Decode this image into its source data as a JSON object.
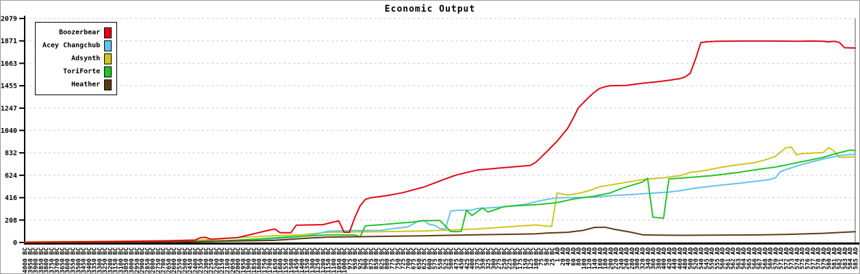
{
  "window": {
    "title": "Economic Output"
  },
  "chart_data": {
    "type": "line",
    "title": "Economic Output",
    "ylim": [
      0,
      2079
    ],
    "yticks": [
      0,
      208,
      416,
      624,
      832,
      1040,
      1247,
      1455,
      1663,
      1871,
      2079
    ],
    "grid": "horizontal-dashed",
    "grid_color": "#c9c9c9",
    "axis_color": "#000000",
    "legend_position": "top-left",
    "x_labels": [
      "4000 BC",
      "3950 BC",
      "3900 BC",
      "3850 BC",
      "3800 BC",
      "3750 BC",
      "3700 BC",
      "3650 BC",
      "3600 BC",
      "3550 BC",
      "3500 BC",
      "3450 BC",
      "3400 BC",
      "3350 BC",
      "3300 BC",
      "3250 BC",
      "3200 BC",
      "3150 BC",
      "3100 BC",
      "3050 BC",
      "3000 BC",
      "2950 BC",
      "2900 BC",
      "2850 BC",
      "2800 BC",
      "2750 BC",
      "2700 BC",
      "2650 BC",
      "2600 BC",
      "2550 BC",
      "2500 BC",
      "2450 BC",
      "2400 BC",
      "2350 BC",
      "2300 BC",
      "2250 BC",
      "2200 BC",
      "2150 BC",
      "2100 BC",
      "2050 BC",
      "2000 BC",
      "1950 BC",
      "1900 BC",
      "1850 BC",
      "1800 BC",
      "1750 BC",
      "1700 BC",
      "1650 BC",
      "1600 BC",
      "1550 BC",
      "1500 BC",
      "1450 BC",
      "1400 BC",
      "1350 BC",
      "1300 BC",
      "1250 BC",
      "1200 BC",
      "1150 BC",
      "1100 BC",
      "1050 BC",
      "1000 BC",
      "975 BC",
      "950 BC",
      "925 BC",
      "900 BC",
      "875 BC",
      "850 BC",
      "825 BC",
      "800 BC",
      "775 BC",
      "750 BC",
      "725 BC",
      "700 BC",
      "675 BC",
      "650 BC",
      "625 BC",
      "600 BC",
      "575 BC",
      "550 BC",
      "525 BC",
      "500 BC",
      "475 BC",
      "450 BC",
      "425 BC",
      "400 BC",
      "375 BC",
      "350 BC",
      "325 BC",
      "300 BC",
      "275 BC",
      "250 BC",
      "225 BC",
      "200 BC",
      "175 BC",
      "150 BC",
      "125 BC",
      "100 BC",
      "75 BC",
      "50 BC",
      "25 BC",
      "1 AD",
      "20 AD",
      "40 AD",
      "60 AD",
      "80 AD",
      "100 AD",
      "120 AD",
      "140 AD",
      "160 AD",
      "180 AD",
      "200 AD",
      "220 AD",
      "240 AD",
      "260 AD",
      "280 AD",
      "300 AD",
      "320 AD",
      "340 AD",
      "360 AD",
      "380 AD",
      "400 AD",
      "420 AD",
      "440 AD",
      "460 AD",
      "480 AD",
      "500 AD",
      "520 AD",
      "540 AD",
      "545 AD",
      "550 AD",
      "555 AD",
      "560 AD",
      "561 AD",
      "562 AD",
      "563 AD",
      "564 AD",
      "565 AD",
      "566 AD",
      "567 AD",
      "568 AD",
      "569 AD",
      "570 AD",
      "571 AD",
      "572 AD",
      "573 AD",
      "574 AD",
      "575 AD",
      "576 AD",
      "577 AD",
      "578 AD",
      "579 AD",
      "580 AD",
      "581 AD",
      "582 AD",
      "583 AD",
      "584 AD",
      "585 AD"
    ],
    "series": [
      {
        "name": "Boozerbear",
        "color": "#e30613",
        "points": [
          [
            0,
            2
          ],
          [
            18,
            10
          ],
          [
            26,
            15
          ],
          [
            32,
            22
          ],
          [
            33,
            45
          ],
          [
            34,
            48
          ],
          [
            35,
            30
          ],
          [
            40,
            45
          ],
          [
            46,
            115
          ],
          [
            47,
            125
          ],
          [
            48,
            90
          ],
          [
            50,
            90
          ],
          [
            51,
            160
          ],
          [
            56,
            165
          ],
          [
            58,
            190
          ],
          [
            59,
            200
          ],
          [
            60,
            95
          ],
          [
            61,
            95
          ],
          [
            62,
            230
          ],
          [
            63,
            340
          ],
          [
            64,
            400
          ],
          [
            65,
            415
          ],
          [
            68,
            435
          ],
          [
            71,
            462
          ],
          [
            75,
            515
          ],
          [
            79,
            590
          ],
          [
            81,
            625
          ],
          [
            83,
            650
          ],
          [
            85,
            672
          ],
          [
            90,
            695
          ],
          [
            95,
            715
          ],
          [
            96,
            745
          ],
          [
            97,
            790
          ],
          [
            98,
            840
          ],
          [
            99,
            890
          ],
          [
            100,
            940
          ],
          [
            101,
            1000
          ],
          [
            102,
            1060
          ],
          [
            103,
            1150
          ],
          [
            104,
            1250
          ],
          [
            105,
            1300
          ],
          [
            106,
            1350
          ],
          [
            107,
            1395
          ],
          [
            108,
            1430
          ],
          [
            109,
            1445
          ],
          [
            110,
            1455
          ],
          [
            113,
            1458
          ],
          [
            115,
            1472
          ],
          [
            117,
            1483
          ],
          [
            119,
            1492
          ],
          [
            121,
            1505
          ],
          [
            123,
            1520
          ],
          [
            124,
            1535
          ],
          [
            125,
            1570
          ],
          [
            126,
            1700
          ],
          [
            127,
            1855
          ],
          [
            128,
            1862
          ],
          [
            130,
            1868
          ],
          [
            135,
            1870
          ],
          [
            140,
            1870
          ],
          [
            145,
            1868
          ],
          [
            148,
            1870
          ],
          [
            150,
            1868
          ],
          [
            151,
            1862
          ],
          [
            152,
            1868
          ],
          [
            153,
            1858
          ],
          [
            154,
            1808
          ],
          [
            156,
            1805
          ]
        ]
      },
      {
        "name": "Acey Changchub",
        "color": "#63c2f0",
        "points": [
          [
            0,
            2
          ],
          [
            20,
            5
          ],
          [
            34,
            10
          ],
          [
            40,
            18
          ],
          [
            47,
            35
          ],
          [
            51,
            50
          ],
          [
            53,
            62
          ],
          [
            55,
            80
          ],
          [
            57,
            105
          ],
          [
            60,
            110
          ],
          [
            67,
            113
          ],
          [
            69,
            128
          ],
          [
            72,
            145
          ],
          [
            74,
            200
          ],
          [
            75,
            205
          ],
          [
            76,
            168
          ],
          [
            77,
            160
          ],
          [
            78,
            130
          ],
          [
            79,
            122
          ],
          [
            80,
            290
          ],
          [
            81,
            298
          ],
          [
            84,
            300
          ],
          [
            85,
            315
          ],
          [
            90,
            330
          ],
          [
            94,
            355
          ],
          [
            97,
            390
          ],
          [
            100,
            415
          ],
          [
            107,
            420
          ],
          [
            110,
            435
          ],
          [
            114,
            445
          ],
          [
            117,
            455
          ],
          [
            121,
            468
          ],
          [
            123,
            480
          ],
          [
            126,
            505
          ],
          [
            129,
            523
          ],
          [
            135,
            554
          ],
          [
            140,
            585
          ],
          [
            141,
            600
          ],
          [
            142,
            660
          ],
          [
            146,
            725
          ],
          [
            150,
            775
          ],
          [
            153,
            807
          ],
          [
            155,
            815
          ],
          [
            156,
            818
          ]
        ]
      },
      {
        "name": "Adsynth",
        "color": "#cfc41c",
        "points": [
          [
            0,
            3
          ],
          [
            3,
            8
          ],
          [
            15,
            10
          ],
          [
            26,
            15
          ],
          [
            34,
            25
          ],
          [
            40,
            45
          ],
          [
            47,
            63
          ],
          [
            52,
            72
          ],
          [
            57,
            95
          ],
          [
            67,
            100
          ],
          [
            75,
            107
          ],
          [
            85,
            126
          ],
          [
            96,
            163
          ],
          [
            98,
            152
          ],
          [
            99,
            150
          ],
          [
            100,
            460
          ],
          [
            102,
            440
          ],
          [
            104,
            455
          ],
          [
            106,
            480
          ],
          [
            108,
            517
          ],
          [
            114,
            567
          ],
          [
            117,
            590
          ],
          [
            120,
            600
          ],
          [
            123,
            620
          ],
          [
            125,
            650
          ],
          [
            128,
            670
          ],
          [
            130,
            690
          ],
          [
            133,
            715
          ],
          [
            137,
            740
          ],
          [
            139,
            765
          ],
          [
            141,
            800
          ],
          [
            142,
            840
          ],
          [
            143,
            880
          ],
          [
            144,
            885
          ],
          [
            145,
            812
          ],
          [
            146,
            825
          ],
          [
            150,
            835
          ],
          [
            151,
            880
          ],
          [
            152,
            850
          ],
          [
            153,
            790
          ],
          [
            156,
            795
          ]
        ]
      },
      {
        "name": "ToriForte",
        "color": "#21c428",
        "points": [
          [
            0,
            3
          ],
          [
            28,
            6
          ],
          [
            38,
            18
          ],
          [
            43,
            30
          ],
          [
            49,
            50
          ],
          [
            57,
            70
          ],
          [
            62,
            70
          ],
          [
            63,
            52
          ],
          [
            64,
            155
          ],
          [
            67,
            165
          ],
          [
            70,
            178
          ],
          [
            73,
            190
          ],
          [
            75,
            202
          ],
          [
            78,
            205
          ],
          [
            80,
            103
          ],
          [
            81,
            100
          ],
          [
            82,
            103
          ],
          [
            83,
            300
          ],
          [
            84,
            250
          ],
          [
            86,
            322
          ],
          [
            87,
            283
          ],
          [
            89,
            315
          ],
          [
            90,
            334
          ],
          [
            94,
            345
          ],
          [
            97,
            355
          ],
          [
            100,
            370
          ],
          [
            103,
            403
          ],
          [
            107,
            430
          ],
          [
            110,
            460
          ],
          [
            112,
            500
          ],
          [
            114,
            530
          ],
          [
            116,
            560
          ],
          [
            117,
            595
          ],
          [
            118,
            235
          ],
          [
            120,
            225
          ],
          [
            121,
            590
          ],
          [
            123,
            597
          ],
          [
            124,
            600
          ],
          [
            129,
            620
          ],
          [
            134,
            650
          ],
          [
            138,
            680
          ],
          [
            141,
            700
          ],
          [
            144,
            730
          ],
          [
            147,
            760
          ],
          [
            150,
            790
          ],
          [
            152,
            820
          ],
          [
            154,
            845
          ],
          [
            155,
            857
          ],
          [
            156,
            853
          ]
        ]
      },
      {
        "name": "Heather",
        "color": "#5c3a10",
        "points": [
          [
            0,
            1
          ],
          [
            28,
            4
          ],
          [
            37,
            12
          ],
          [
            47,
            20
          ],
          [
            53,
            40
          ],
          [
            57,
            50
          ],
          [
            75,
            62
          ],
          [
            85,
            72
          ],
          [
            96,
            80
          ],
          [
            98,
            88
          ],
          [
            102,
            95
          ],
          [
            105,
            113
          ],
          [
            107,
            140
          ],
          [
            109,
            142
          ],
          [
            111,
            120
          ],
          [
            114,
            95
          ],
          [
            116,
            72
          ],
          [
            119,
            68
          ],
          [
            124,
            67
          ],
          [
            137,
            70
          ],
          [
            143,
            75
          ],
          [
            150,
            85
          ],
          [
            155,
            98
          ],
          [
            156,
            100
          ]
        ]
      }
    ]
  }
}
